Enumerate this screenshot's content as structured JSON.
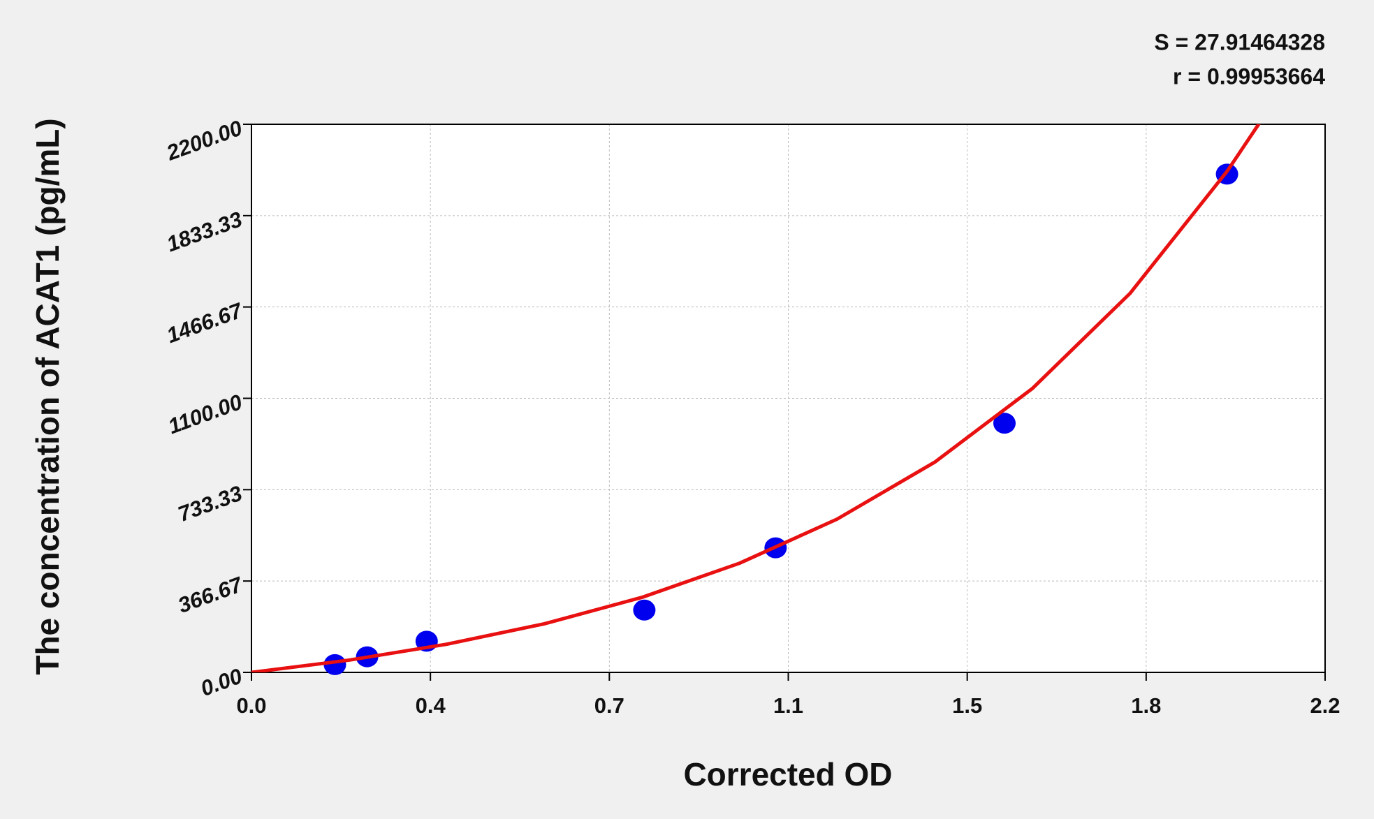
{
  "chart_data": {
    "type": "scatter",
    "annotations": [
      "S = 27.91464328",
      "r = 0.99953664"
    ],
    "x_label": "Corrected OD",
    "y_label": "The concentration of ACAT1 (pg/mL)",
    "xlim": [
      0,
      2.2
    ],
    "ylim": [
      0,
      2200
    ],
    "xticks": [
      {
        "value": 0,
        "label": "0.0"
      },
      {
        "value": 0.36667,
        "label": "0.4"
      },
      {
        "value": 0.73333,
        "label": "0.7"
      },
      {
        "value": 1.1,
        "label": "1.1"
      },
      {
        "value": 1.46667,
        "label": "1.5"
      },
      {
        "value": 1.83333,
        "label": "1.8"
      },
      {
        "value": 2.2,
        "label": "2.2"
      }
    ],
    "yticks": [
      {
        "value": 0,
        "label": "0.00"
      },
      366.67,
      733.33,
      {
        "value": 1100,
        "label": "1100.00"
      },
      1466.67,
      1833.33,
      {
        "value": 2200,
        "label": "2200.00"
      }
    ],
    "grid": true,
    "series": [
      {
        "type": "scatter",
        "color": "#0000ee",
        "x": [
          0.171,
          0.237,
          0.359,
          0.805,
          1.074,
          1.543,
          1.999
        ],
        "values": [
          31.25,
          62.5,
          125,
          250,
          500,
          1000,
          2000
        ]
      },
      {
        "type": "line",
        "color": "#e81010",
        "x": [
          0,
          0.2,
          0.4,
          0.6,
          0.8,
          1.0,
          1.2,
          1.4,
          1.6,
          1.8,
          2.0,
          2.07
        ],
        "values": [
          0,
          49.2,
          112.9,
          194.9,
          301.0,
          438.1,
          615.1,
          843.7,
          1139.1,
          1520.7,
          2013.6,
          2218.2
        ]
      }
    ]
  }
}
